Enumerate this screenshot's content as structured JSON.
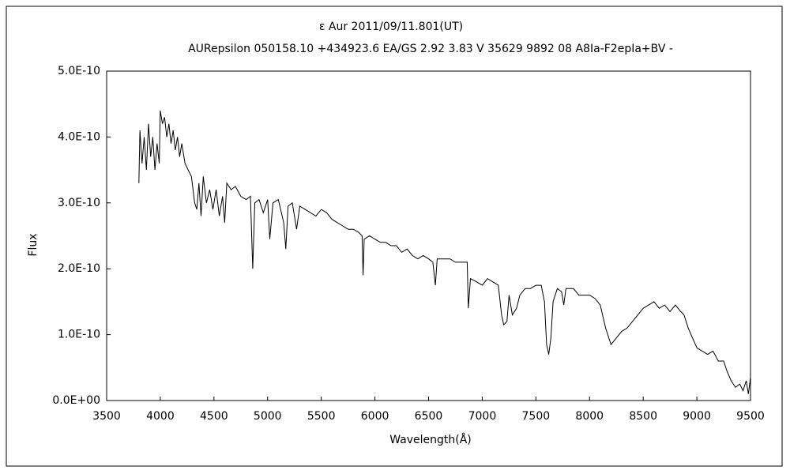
{
  "chart_data": {
    "type": "line",
    "title": "ε  Aur   2011/09/11.801(UT)",
    "subtitle": "AURepsilon 050158.10 +434923.6 EA/GS 2.92 3.83 V 35629 9892 08 A8Ia-F2epIa+BV -",
    "x_label": "Wavelength(Å)",
    "y_label": "Flux",
    "xlim": [
      3500,
      9500
    ],
    "xticks": [
      3500,
      4000,
      4500,
      5000,
      5500,
      6000,
      6500,
      7000,
      7500,
      8000,
      8500,
      9000,
      9500
    ],
    "ylim": [
      0,
      5e-10
    ],
    "yticks": [
      {
        "value": 0,
        "label": "0.0E+00"
      },
      {
        "value": 1e-10,
        "label": "1.0E-10"
      },
      {
        "value": 2e-10,
        "label": "2.0E-10"
      },
      {
        "value": 3e-10,
        "label": "3.0E-10"
      },
      {
        "value": 4e-10,
        "label": "4.0E-10"
      },
      {
        "value": 5e-10,
        "label": "5.0E-10"
      }
    ],
    "color": "#000000",
    "x": [
      3800,
      3810,
      3830,
      3850,
      3870,
      3890,
      3910,
      3930,
      3950,
      3970,
      3990,
      4000,
      4020,
      4040,
      4060,
      4080,
      4100,
      4120,
      4140,
      4160,
      4180,
      4200,
      4230,
      4260,
      4290,
      4320,
      4340,
      4360,
      4380,
      4400,
      4430,
      4460,
      4490,
      4520,
      4550,
      4580,
      4600,
      4620,
      4660,
      4700,
      4750,
      4800,
      4840,
      4861,
      4880,
      4920,
      4960,
      5000,
      5020,
      5050,
      5100,
      5150,
      5170,
      5190,
      5230,
      5270,
      5300,
      5350,
      5400,
      5450,
      5500,
      5550,
      5600,
      5650,
      5700,
      5750,
      5800,
      5850,
      5880,
      5890,
      5900,
      5950,
      6000,
      6050,
      6100,
      6150,
      6200,
      6250,
      6300,
      6350,
      6400,
      6450,
      6500,
      6540,
      6563,
      6580,
      6650,
      6700,
      6750,
      6800,
      6860,
      6870,
      6890,
      6950,
      7000,
      7050,
      7100,
      7150,
      7180,
      7200,
      7230,
      7250,
      7280,
      7320,
      7350,
      7400,
      7450,
      7500,
      7550,
      7580,
      7600,
      7620,
      7640,
      7660,
      7700,
      7740,
      7760,
      7780,
      7850,
      7900,
      7950,
      8000,
      8050,
      8100,
      8150,
      8200,
      8250,
      8300,
      8350,
      8400,
      8450,
      8500,
      8550,
      8600,
      8650,
      8700,
      8750,
      8800,
      8850,
      8880,
      8920,
      8960,
      9000,
      9050,
      9100,
      9150,
      9200,
      9250,
      9280,
      9320,
      9360,
      9400,
      9430,
      9460,
      9480,
      9500
    ],
    "values": [
      3.3e-10,
      4.1e-10,
      3.6e-10,
      4e-10,
      3.5e-10,
      4.2e-10,
      3.7e-10,
      4e-10,
      3.5e-10,
      3.9e-10,
      3.6e-10,
      4.4e-10,
      4.2e-10,
      4.3e-10,
      4e-10,
      4.2e-10,
      3.9e-10,
      4.1e-10,
      3.8e-10,
      4e-10,
      3.7e-10,
      3.9e-10,
      3.6e-10,
      3.5e-10,
      3.4e-10,
      3e-10,
      2.9e-10,
      3.3e-10,
      2.8e-10,
      3.4e-10,
      3e-10,
      3.2e-10,
      2.9e-10,
      3.2e-10,
      2.8e-10,
      3.1e-10,
      2.7e-10,
      3.3e-10,
      3.2e-10,
      3.25e-10,
      3.1e-10,
      3.05e-10,
      3.1e-10,
      2e-10,
      3e-10,
      3.05e-10,
      2.85e-10,
      3.05e-10,
      2.45e-10,
      3e-10,
      3.05e-10,
      2.7e-10,
      2.3e-10,
      2.95e-10,
      3e-10,
      2.6e-10,
      2.95e-10,
      2.9e-10,
      2.85e-10,
      2.8e-10,
      2.9e-10,
      2.85e-10,
      2.75e-10,
      2.7e-10,
      2.65e-10,
      2.6e-10,
      2.6e-10,
      2.55e-10,
      2.5e-10,
      1.9e-10,
      2.45e-10,
      2.5e-10,
      2.45e-10,
      2.4e-10,
      2.4e-10,
      2.35e-10,
      2.35e-10,
      2.25e-10,
      2.3e-10,
      2.2e-10,
      2.15e-10,
      2.2e-10,
      2.15e-10,
      2.1e-10,
      1.75e-10,
      2.15e-10,
      2.15e-10,
      2.15e-10,
      2.1e-10,
      2.1e-10,
      2.1e-10,
      1.4e-10,
      1.85e-10,
      1.8e-10,
      1.75e-10,
      1.85e-10,
      1.8e-10,
      1.75e-10,
      1.3e-10,
      1.15e-10,
      1.2e-10,
      1.6e-10,
      1.3e-10,
      1.4e-10,
      1.6e-10,
      1.7e-10,
      1.7e-10,
      1.75e-10,
      1.75e-10,
      1.5e-10,
      8.5e-11,
      7e-11,
      9.5e-11,
      1.5e-10,
      1.7e-10,
      1.65e-10,
      1.45e-10,
      1.7e-10,
      1.7e-10,
      1.6e-10,
      1.6e-10,
      1.6e-10,
      1.55e-10,
      1.45e-10,
      1.1e-10,
      8.5e-11,
      9.5e-11,
      1.05e-10,
      1.1e-10,
      1.2e-10,
      1.3e-10,
      1.4e-10,
      1.45e-10,
      1.5e-10,
      1.4e-10,
      1.45e-10,
      1.35e-10,
      1.45e-10,
      1.35e-10,
      1.3e-10,
      1.1e-10,
      9.5e-11,
      8e-11,
      7.5e-11,
      7e-11,
      7.5e-11,
      6e-11,
      6e-11,
      4.5e-11,
      3e-11,
      2e-11,
      2.5e-11,
      1.5e-11,
      3e-11,
      1e-11,
      3.5e-11
    ]
  }
}
